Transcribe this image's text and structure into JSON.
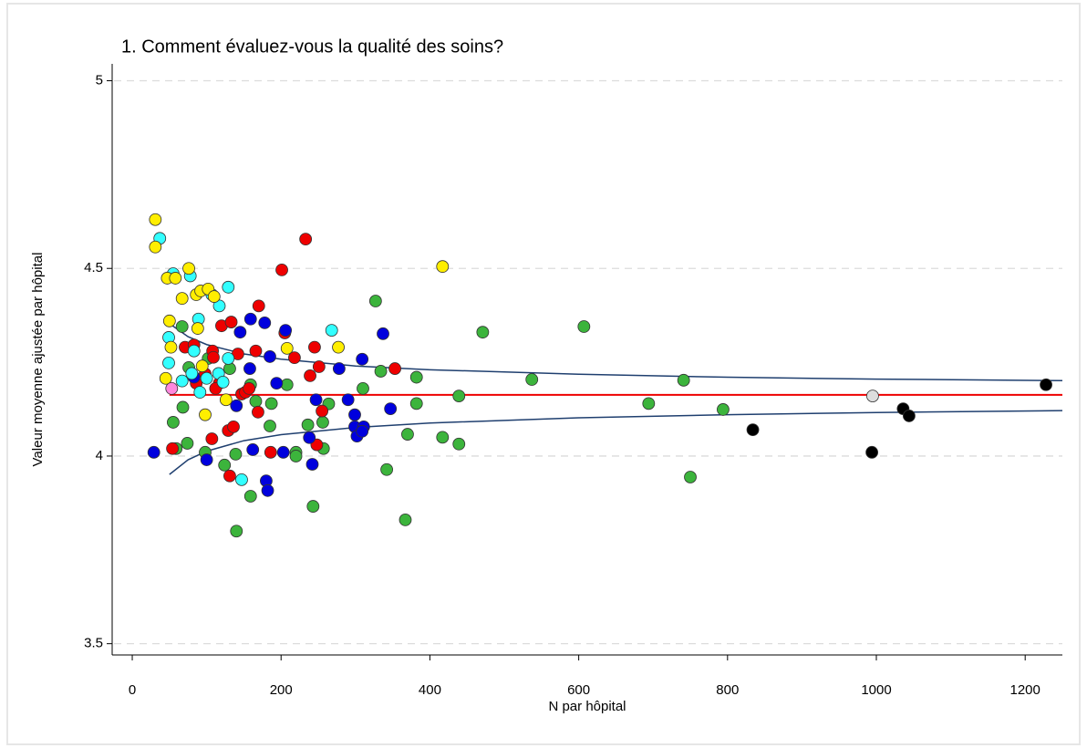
{
  "chart_data": {
    "type": "scatter",
    "title": "1. Comment évaluez-vous la qualité des soins?",
    "x_label": "N par hôpital",
    "y_label": "Valeur moyenne ajustée par hôpital",
    "xlim": [
      -27,
      1250
    ],
    "ylim": [
      3.47,
      5.045
    ],
    "xticks": [
      0,
      200,
      400,
      600,
      800,
      1000,
      1200
    ],
    "yticks": [
      3.5,
      4,
      4.5,
      5
    ],
    "grid": true,
    "series": [
      {
        "color": "#3cb43c",
        "x": [
          140,
          327,
          471,
          607,
          537,
          741,
          694,
          794,
          750,
          367,
          342,
          439,
          439,
          417,
          382,
          382,
          334,
          310,
          370,
          264,
          256,
          236,
          220,
          220,
          257,
          243,
          159,
          124,
          139,
          98,
          74,
          55,
          59,
          68,
          67,
          80,
          76,
          102,
          131,
          159,
          166,
          185,
          208,
          187
        ],
        "values": [
          3.8,
          4.413,
          4.33,
          4.345,
          4.204,
          4.202,
          4.14,
          4.124,
          3.944,
          3.83,
          3.964,
          4.032,
          4.16,
          4.05,
          4.21,
          4.14,
          4.226,
          4.18,
          4.058,
          4.139,
          4.09,
          4.083,
          4.01,
          4.0,
          4.02,
          3.866,
          3.893,
          3.976,
          4.005,
          4.01,
          4.034,
          4.09,
          4.02,
          4.13,
          4.345,
          4.29,
          4.236,
          4.26,
          4.233,
          4.19,
          4.146,
          4.08,
          4.19,
          4.14
        ]
      },
      {
        "color": "#ee0000",
        "x": [
          233,
          201,
          170,
          120,
          133,
          71,
          83,
          108,
          142,
          166,
          109,
          218,
          245,
          205,
          98,
          117,
          86,
          112,
          147,
          152,
          157,
          169,
          239,
          251,
          353,
          255,
          54,
          107,
          129,
          136,
          186,
          248,
          131
        ],
        "values": [
          4.578,
          4.496,
          4.4,
          4.347,
          4.357,
          4.29,
          4.296,
          4.28,
          4.272,
          4.28,
          4.263,
          4.262,
          4.29,
          4.328,
          4.219,
          4.194,
          4.194,
          4.18,
          4.165,
          4.17,
          4.18,
          4.117,
          4.214,
          4.238,
          4.233,
          4.12,
          4.02,
          4.046,
          4.068,
          4.078,
          4.01,
          4.03,
          3.947
        ]
      },
      {
        "color": "#0000dd",
        "x": [
          159,
          178,
          145,
          185,
          158,
          194,
          83,
          206,
          278,
          337,
          309,
          290,
          247,
          299,
          299,
          311,
          302,
          347,
          309,
          238,
          203,
          242,
          100,
          29,
          162,
          180,
          182,
          140
        ],
        "values": [
          4.365,
          4.355,
          4.33,
          4.265,
          4.233,
          4.194,
          4.21,
          4.335,
          4.233,
          4.326,
          4.258,
          4.15,
          4.15,
          4.11,
          4.078,
          4.078,
          4.053,
          4.126,
          4.066,
          4.049,
          4.01,
          3.978,
          3.99,
          4.01,
          4.017,
          3.934,
          3.908,
          4.134
        ]
      },
      {
        "color": "#33ffff",
        "x": [
          37,
          55,
          78,
          107,
          129,
          117,
          89,
          49,
          83,
          49,
          129,
          80,
          100,
          116,
          122,
          91,
          67,
          147,
          268
        ],
        "values": [
          4.58,
          4.486,
          4.48,
          4.43,
          4.45,
          4.4,
          4.365,
          4.316,
          4.28,
          4.248,
          4.26,
          4.22,
          4.207,
          4.22,
          4.197,
          4.17,
          4.2,
          3.937,
          4.335
        ]
      },
      {
        "color": "#ffee00",
        "x": [
          31,
          31,
          76,
          47,
          58,
          67,
          86,
          92,
          102,
          110,
          50,
          52,
          88,
          45,
          94,
          98,
          126,
          208,
          277,
          417
        ],
        "values": [
          4.63,
          4.557,
          4.5,
          4.474,
          4.474,
          4.42,
          4.43,
          4.44,
          4.445,
          4.425,
          4.36,
          4.29,
          4.34,
          4.207,
          4.24,
          4.11,
          4.15,
          4.287,
          4.29,
          4.505
        ]
      },
      {
        "color": "#000000",
        "x": [
          1228,
          834,
          994,
          1036,
          1044
        ],
        "values": [
          4.19,
          4.07,
          4.01,
          4.126,
          4.107
        ]
      },
      {
        "color": "#ff88dd",
        "x": [
          53
        ],
        "values": [
          4.18
        ]
      },
      {
        "color": "#dddddd",
        "x": [
          995
        ],
        "values": [
          4.16
        ]
      }
    ],
    "lines": [
      {
        "color": "#ee0000",
        "x": [
          50,
          1250
        ],
        "values": [
          4.163,
          4.163
        ]
      },
      {
        "color": "#1f3f6f",
        "x": [
          50,
          75,
          100,
          150,
          200,
          300,
          400,
          600,
          800,
          1000,
          1250
        ],
        "values": [
          4.353,
          4.318,
          4.297,
          4.272,
          4.258,
          4.24,
          4.23,
          4.218,
          4.21,
          4.205,
          4.201
        ]
      },
      {
        "color": "#1f3f6f",
        "x": [
          50,
          75,
          100,
          150,
          200,
          300,
          400,
          600,
          800,
          1000,
          1250
        ],
        "values": [
          3.951,
          3.99,
          4.013,
          4.041,
          4.057,
          4.076,
          4.088,
          4.102,
          4.11,
          4.116,
          4.121
        ]
      }
    ]
  }
}
